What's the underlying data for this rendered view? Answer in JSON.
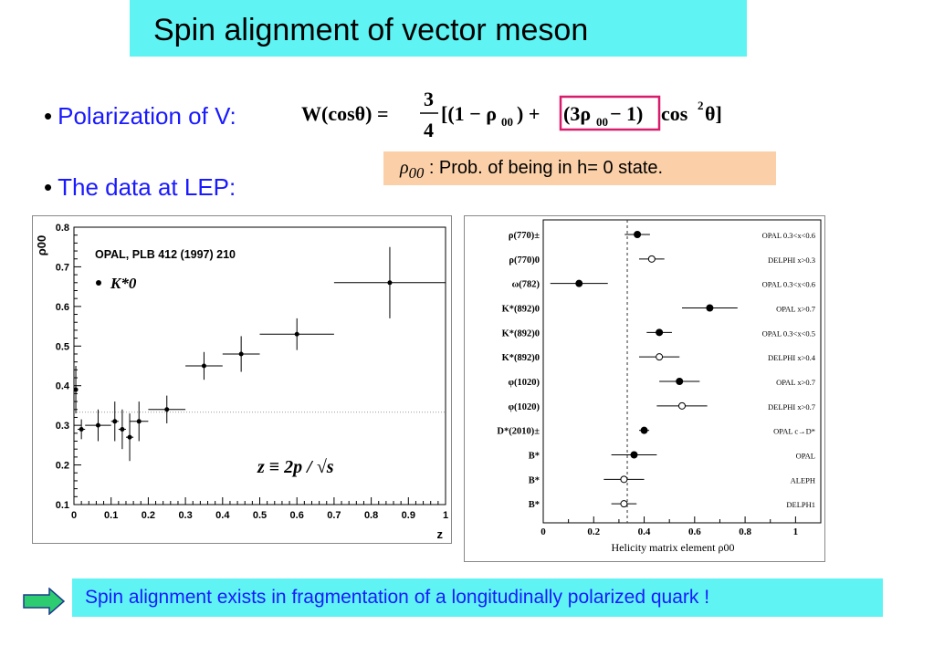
{
  "slide": {
    "title": "Spin alignment of  vector meson",
    "bullet1": "Polarization of V:",
    "bullet2": "The data at LEP:",
    "formula": {
      "lhs": "W(cosθ) =",
      "frac_num": "3",
      "frac_den": "4",
      "part1": "[(1 − ρ",
      "sub1": "00",
      "part2": ") + ",
      "boxed": "(3ρ",
      "sub2": "00",
      "boxed_end": " − 1)",
      "part3": "cos",
      "sup": "2",
      "part4": " θ]",
      "box_color": "#d81b6b"
    },
    "note": {
      "symbol": "ρ",
      "sub": "00",
      "text": " :  Prob. of  being in h= 0 state."
    },
    "conclusion": "Spin alignment exists in fragmentation of a longitudinally polarized quark !",
    "colors": {
      "cyan": "#5ff3f3",
      "peach": "#fbd0a8",
      "blue": "#1a1aff",
      "arrow": "#2ecc71"
    }
  },
  "chart_data": [
    {
      "type": "scatter",
      "title": "OPAL, PLB 412 (1997) 210",
      "xlabel": "z",
      "ylabel": "ρ00",
      "legend": "K*0",
      "annotation": "z ≡ 2p / √s",
      "xlim": [
        0,
        1
      ],
      "ylim": [
        0.1,
        0.8
      ],
      "xticks": [
        "0",
        "0.1",
        "0.2",
        "0.3",
        "0.4",
        "0.5",
        "0.6",
        "0.7",
        "0.8",
        "0.9",
        "1"
      ],
      "yticks": [
        "0.1",
        "0.2",
        "0.3",
        "0.4",
        "0.5",
        "0.6",
        "0.7",
        "0.8"
      ],
      "reference_line": 0.333,
      "points": [
        {
          "x": 0.005,
          "y": 0.39,
          "xerr": 0.005,
          "yerr": 0.06
        },
        {
          "x": 0.02,
          "y": 0.29,
          "xerr": 0.01,
          "yerr": 0.025
        },
        {
          "x": 0.065,
          "y": 0.3,
          "xerr": 0.035,
          "yerr": 0.04
        },
        {
          "x": 0.11,
          "y": 0.31,
          "xerr": 0.01,
          "yerr": 0.05
        },
        {
          "x": 0.13,
          "y": 0.29,
          "xerr": 0.01,
          "yerr": 0.05
        },
        {
          "x": 0.15,
          "y": 0.27,
          "xerr": 0.01,
          "yerr": 0.06
        },
        {
          "x": 0.175,
          "y": 0.31,
          "xerr": 0.025,
          "yerr": 0.05
        },
        {
          "x": 0.25,
          "y": 0.34,
          "xerr": 0.05,
          "yerr": 0.035
        },
        {
          "x": 0.35,
          "y": 0.45,
          "xerr": 0.05,
          "yerr": 0.035
        },
        {
          "x": 0.45,
          "y": 0.48,
          "xerr": 0.05,
          "yerr": 0.045
        },
        {
          "x": 0.6,
          "y": 0.53,
          "xerr": 0.1,
          "yerr": 0.04
        },
        {
          "x": 0.85,
          "y": 0.66,
          "xerr": 0.15,
          "yerr": 0.09
        }
      ]
    },
    {
      "type": "scatter",
      "xlabel": "Helicity matrix element ρ00",
      "xlim": [
        0,
        1.1
      ],
      "xticks": [
        "0",
        "0.2",
        "0.4",
        "0.6",
        "0.8",
        "1"
      ],
      "reference_line": 0.333,
      "rows": [
        {
          "label": "ρ(770)±",
          "exp": "OPAL 0.3<x<0.6",
          "value": 0.373,
          "err": 0.05,
          "filled": true
        },
        {
          "label": "ρ(770)0",
          "exp": "DELPHI x>0.3",
          "value": 0.43,
          "err": 0.05,
          "filled": false
        },
        {
          "label": "ω(782)",
          "exp": "OPAL 0.3<x<0.6",
          "value": 0.142,
          "err": 0.114,
          "filled": true
        },
        {
          "label": "K*(892)0",
          "exp": "OPAL x>0.7",
          "value": 0.66,
          "err": 0.11,
          "filled": true
        },
        {
          "label": "K*(892)0",
          "exp": "OPAL 0.3<x<0.5",
          "value": 0.46,
          "err": 0.05,
          "filled": true
        },
        {
          "label": "K*(892)0",
          "exp": "DELPHI x>0.4",
          "value": 0.46,
          "err": 0.08,
          "filled": false
        },
        {
          "label": "φ(1020)",
          "exp": "OPAL x>0.7",
          "value": 0.54,
          "err": 0.08,
          "filled": true
        },
        {
          "label": "φ(1020)",
          "exp": "DELPHI x>0.7",
          "value": 0.55,
          "err": 0.1,
          "filled": false
        },
        {
          "label": "D*(2010)±",
          "exp": "OPAL c→D*",
          "value": 0.4,
          "err": 0.02,
          "filled": true
        },
        {
          "label": "B*",
          "exp": "OPAL",
          "value": 0.36,
          "err": 0.09,
          "filled": true
        },
        {
          "label": "B*",
          "exp": "ALEPH",
          "value": 0.32,
          "err": 0.08,
          "filled": false
        },
        {
          "label": "B*",
          "exp": "DELPH1",
          "value": 0.32,
          "err": 0.05,
          "filled": false
        }
      ]
    }
  ]
}
